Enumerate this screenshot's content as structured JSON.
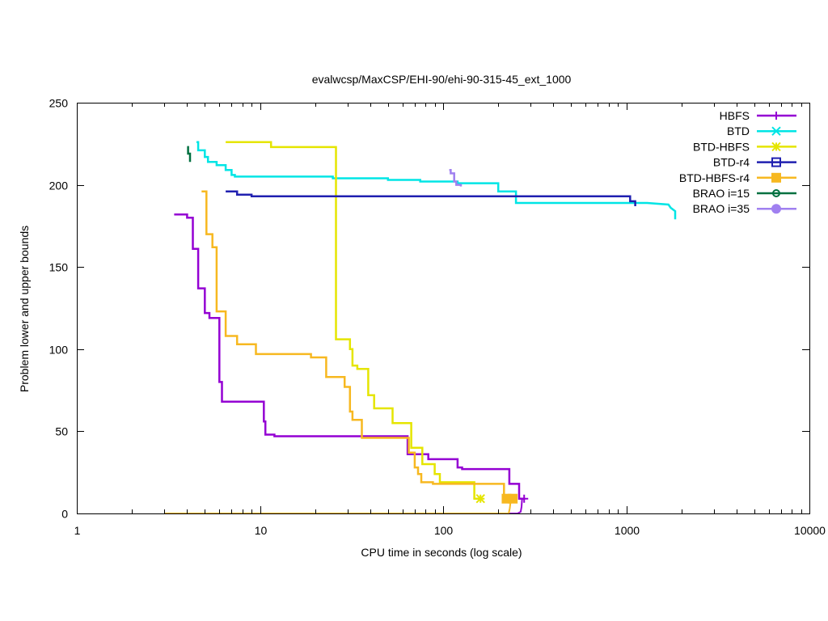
{
  "chart_data": {
    "type": "line",
    "title": "evalwcsp/MaxCSP/EHI-90/ehi-90-315-45_ext_1000",
    "xlabel": "CPU time in seconds (log scale)",
    "ylabel": "Problem lower and upper bounds",
    "xscale": "log",
    "xlim": [
      1,
      10000
    ],
    "ylim": [
      0,
      250
    ],
    "xticks": [
      {
        "value": 1,
        "label": "1"
      },
      {
        "value": 10,
        "label": "10"
      },
      {
        "value": 100,
        "label": "100"
      },
      {
        "value": 1000,
        "label": "1000"
      },
      {
        "value": 10000,
        "label": "10000"
      }
    ],
    "yticks": [
      {
        "value": 0,
        "label": "0"
      },
      {
        "value": 50,
        "label": "50"
      },
      {
        "value": 100,
        "label": "100"
      },
      {
        "value": 150,
        "label": "150"
      },
      {
        "value": 200,
        "label": "200"
      },
      {
        "value": 250,
        "label": "250"
      }
    ],
    "legend_position": "top-right",
    "series": [
      {
        "name": "HBFS",
        "color": "#9400d3",
        "marker": "plus",
        "upper": [
          [
            3.4,
            182
          ],
          [
            4.0,
            182
          ],
          [
            4.0,
            180
          ],
          [
            4.3,
            180
          ],
          [
            4.3,
            161
          ],
          [
            4.6,
            161
          ],
          [
            4.6,
            137
          ],
          [
            5.0,
            137
          ],
          [
            5.0,
            122
          ],
          [
            5.3,
            122
          ],
          [
            5.3,
            119
          ],
          [
            6.0,
            119
          ],
          [
            6.0,
            80
          ],
          [
            6.2,
            80
          ],
          [
            6.2,
            68
          ],
          [
            10.5,
            68
          ],
          [
            10.5,
            56
          ],
          [
            10.7,
            56
          ],
          [
            10.7,
            48
          ],
          [
            12,
            48
          ],
          [
            12,
            47
          ],
          [
            64,
            47
          ],
          [
            64,
            36
          ],
          [
            83,
            36
          ],
          [
            83,
            33
          ],
          [
            120,
            33
          ],
          [
            120,
            28
          ],
          [
            127,
            28
          ],
          [
            127,
            27
          ],
          [
            230,
            27
          ],
          [
            230,
            18
          ],
          [
            260,
            18
          ],
          [
            260,
            9
          ],
          [
            280,
            9
          ]
        ],
        "lower": [
          [
            3.0,
            0
          ],
          [
            255,
            0
          ],
          [
            265,
            1
          ],
          [
            268,
            4
          ],
          [
            270,
            9
          ]
        ],
        "markers": [
          [
            277,
            9
          ]
        ]
      },
      {
        "name": "BTD",
        "color": "#00e5e5",
        "marker": "x",
        "upper": [
          [
            4.5,
            226
          ],
          [
            4.6,
            226
          ],
          [
            4.6,
            221
          ],
          [
            5.0,
            221
          ],
          [
            5.0,
            217
          ],
          [
            5.2,
            217
          ],
          [
            5.2,
            214
          ],
          [
            5.8,
            214
          ],
          [
            5.8,
            212
          ],
          [
            6.5,
            212
          ],
          [
            6.5,
            209
          ],
          [
            7.0,
            209
          ],
          [
            7.0,
            206
          ],
          [
            7.3,
            206
          ],
          [
            7.3,
            205
          ],
          [
            25,
            205
          ],
          [
            25,
            204
          ],
          [
            50,
            204
          ],
          [
            50,
            203
          ],
          [
            75,
            203
          ],
          [
            75,
            202
          ],
          [
            120,
            202
          ],
          [
            120,
            201
          ],
          [
            200,
            201
          ],
          [
            200,
            196
          ],
          [
            250,
            196
          ],
          [
            250,
            189
          ],
          [
            1300,
            189
          ],
          [
            1700,
            188
          ],
          [
            1750,
            186
          ],
          [
            1850,
            184
          ],
          [
            1850,
            179
          ]
        ],
        "lower": [],
        "markers": []
      },
      {
        "name": "BTD-HBFS",
        "color": "#e5e500",
        "marker": "star",
        "upper": [
          [
            6.5,
            226
          ],
          [
            11.5,
            226
          ],
          [
            11.5,
            223
          ],
          [
            26,
            223
          ],
          [
            26,
            106
          ],
          [
            31,
            106
          ],
          [
            31,
            100
          ],
          [
            32,
            100
          ],
          [
            32,
            90
          ],
          [
            34,
            90
          ],
          [
            34,
            88
          ],
          [
            39,
            88
          ],
          [
            39,
            72
          ],
          [
            42,
            72
          ],
          [
            42,
            64
          ],
          [
            53,
            64
          ],
          [
            53,
            55
          ],
          [
            67,
            55
          ],
          [
            67,
            40
          ],
          [
            77,
            40
          ],
          [
            77,
            30
          ],
          [
            90,
            30
          ],
          [
            90,
            24
          ],
          [
            96,
            24
          ],
          [
            96,
            19
          ],
          [
            148,
            19
          ],
          [
            148,
            9
          ],
          [
            160,
            9
          ]
        ],
        "lower": [],
        "markers": [
          [
            160,
            9
          ]
        ]
      },
      {
        "name": "BTD-r4",
        "color": "#2020b0",
        "marker": "square",
        "upper": [
          [
            6.5,
            196
          ],
          [
            7.5,
            196
          ],
          [
            7.5,
            194
          ],
          [
            9.0,
            194
          ],
          [
            9.0,
            193
          ],
          [
            1050,
            193
          ],
          [
            1050,
            190
          ],
          [
            1120,
            190
          ],
          [
            1120,
            187
          ]
        ],
        "lower": [],
        "markers": []
      },
      {
        "name": "BTD-HBFS-r4",
        "color": "#f7b820",
        "marker": "filled-square",
        "upper": [
          [
            4.8,
            196
          ],
          [
            5.1,
            196
          ],
          [
            5.1,
            170
          ],
          [
            5.5,
            170
          ],
          [
            5.5,
            162
          ],
          [
            5.8,
            162
          ],
          [
            5.8,
            123
          ],
          [
            6.5,
            123
          ],
          [
            6.5,
            108
          ],
          [
            7.5,
            108
          ],
          [
            7.5,
            103
          ],
          [
            9.5,
            103
          ],
          [
            9.5,
            97
          ],
          [
            19,
            97
          ],
          [
            19,
            95
          ],
          [
            23,
            95
          ],
          [
            23,
            83
          ],
          [
            29,
            83
          ],
          [
            29,
            77
          ],
          [
            31,
            77
          ],
          [
            31,
            62
          ],
          [
            32,
            62
          ],
          [
            32,
            57
          ],
          [
            36,
            57
          ],
          [
            36,
            46
          ],
          [
            65,
            46
          ],
          [
            65,
            37
          ],
          [
            70,
            37
          ],
          [
            70,
            28
          ],
          [
            73,
            28
          ],
          [
            73,
            24
          ],
          [
            76,
            24
          ],
          [
            76,
            19
          ],
          [
            88,
            19
          ],
          [
            88,
            18
          ],
          [
            215,
            18
          ],
          [
            215,
            9
          ],
          [
            240,
            9
          ]
        ],
        "lower": [
          [
            3.0,
            0
          ],
          [
            228,
            0
          ],
          [
            231,
            3
          ],
          [
            233,
            6
          ],
          [
            235,
            9
          ]
        ],
        "markers": [
          [
            222,
            9
          ],
          [
            240,
            9
          ]
        ]
      },
      {
        "name": "BRAO i=15",
        "color": "#007040",
        "marker": "circle",
        "upper": [
          [
            4.0,
            223
          ],
          [
            4.05,
            223
          ],
          [
            4.05,
            219
          ],
          [
            4.15,
            219
          ],
          [
            4.15,
            214
          ]
        ],
        "lower": [],
        "markers": []
      },
      {
        "name": "BRAO i=35",
        "color": "#a080f0",
        "marker": "filled-circle",
        "upper": [
          [
            108,
            209
          ],
          [
            110,
            209
          ],
          [
            110,
            207
          ],
          [
            115,
            207
          ],
          [
            115,
            202
          ],
          [
            118,
            202
          ],
          [
            118,
            200
          ],
          [
            125,
            200
          ],
          [
            125,
            199
          ]
        ],
        "lower": [],
        "markers": []
      }
    ]
  }
}
